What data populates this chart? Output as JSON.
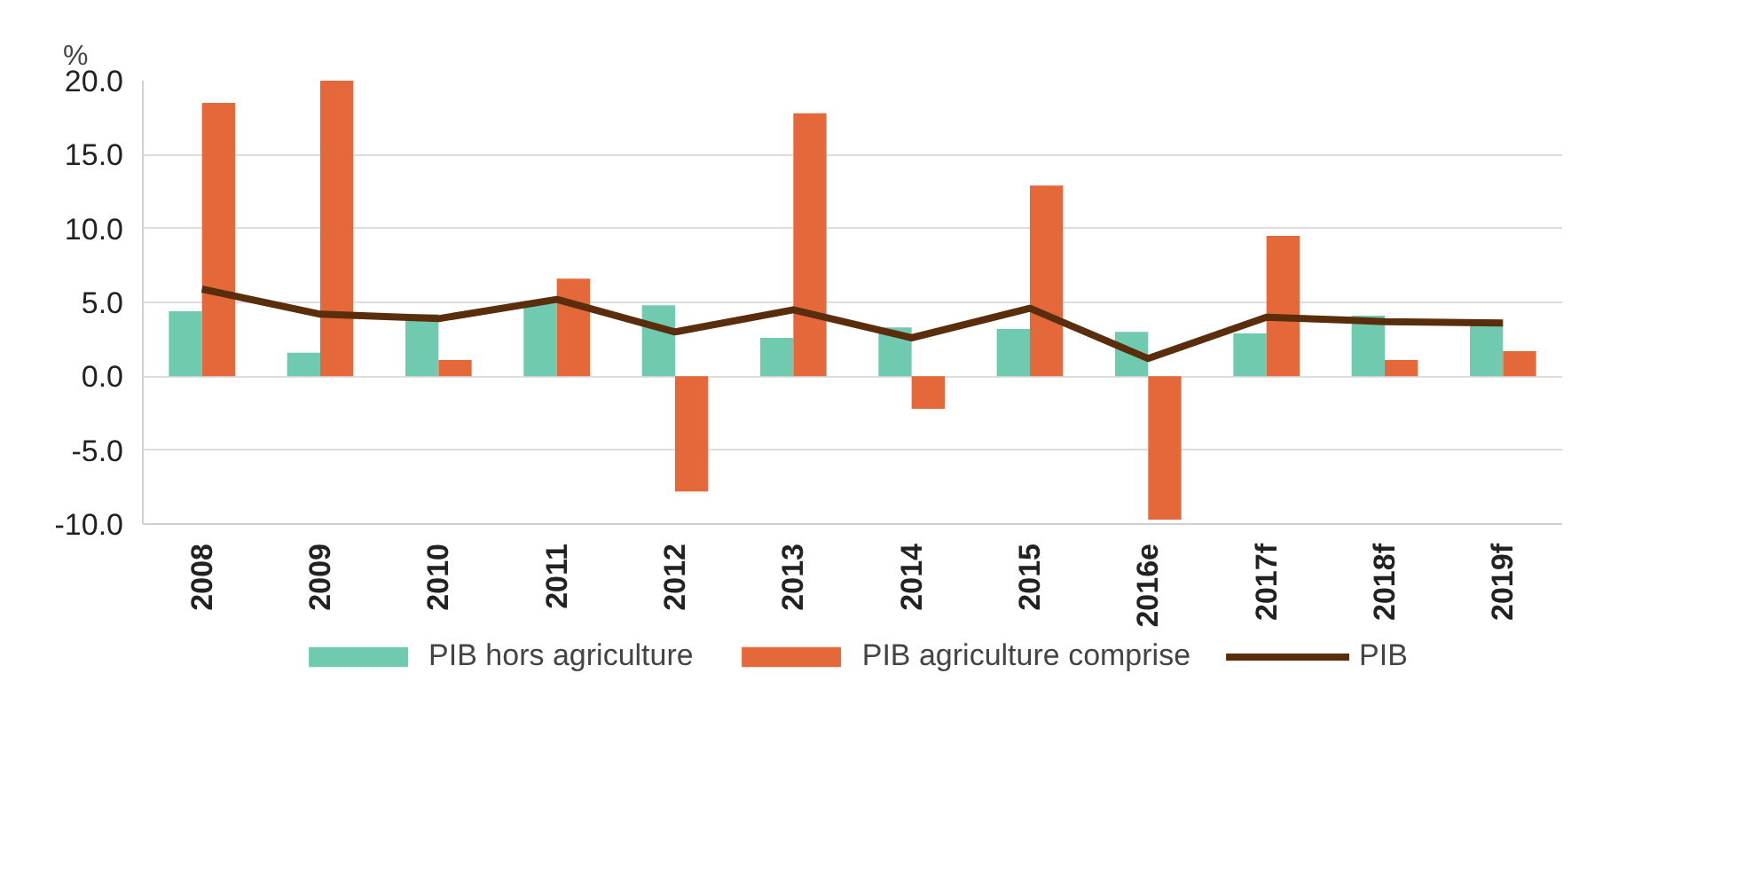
{
  "chart_data": {
    "type": "bar",
    "ylabel": "%",
    "categories": [
      "2008",
      "2009",
      "2010",
      "2011",
      "2012",
      "2013",
      "2014",
      "2015",
      "2016e",
      "2017f",
      "2018f",
      "2019f"
    ],
    "series": [
      {
        "name": "PIB hors agriculture",
        "color": "#6fcab0",
        "values": [
          4.4,
          1.6,
          4.2,
          5.1,
          4.8,
          2.6,
          3.3,
          3.2,
          3.0,
          2.9,
          4.1,
          3.5
        ]
      },
      {
        "name": "PIB agriculture comprise",
        "color": "#e4683a",
        "values": [
          18.5,
          20.0,
          1.1,
          6.6,
          -7.8,
          17.8,
          -2.2,
          12.9,
          -9.7,
          9.5,
          1.1,
          1.7
        ]
      },
      {
        "name": "PIB",
        "type": "line",
        "color": "#5a2d0c",
        "values": [
          5.9,
          4.2,
          3.9,
          5.2,
          3.0,
          4.5,
          2.6,
          4.6,
          1.2,
          4.0,
          3.7,
          3.6
        ]
      }
    ],
    "ylim": [
      -10,
      20
    ],
    "yticks": [
      {
        "value": -10,
        "label": "-10.0"
      },
      {
        "value": -5,
        "label": "-5.0"
      },
      {
        "value": 0,
        "label": "0.0"
      },
      {
        "value": 5,
        "label": "5.0"
      },
      {
        "value": 10,
        "label": "10.0"
      },
      {
        "value": 15,
        "label": "15.0"
      },
      {
        "value": 20,
        "label": "20.0"
      }
    ],
    "grid": "y",
    "legend": "bottom",
    "line_style": "solid"
  }
}
